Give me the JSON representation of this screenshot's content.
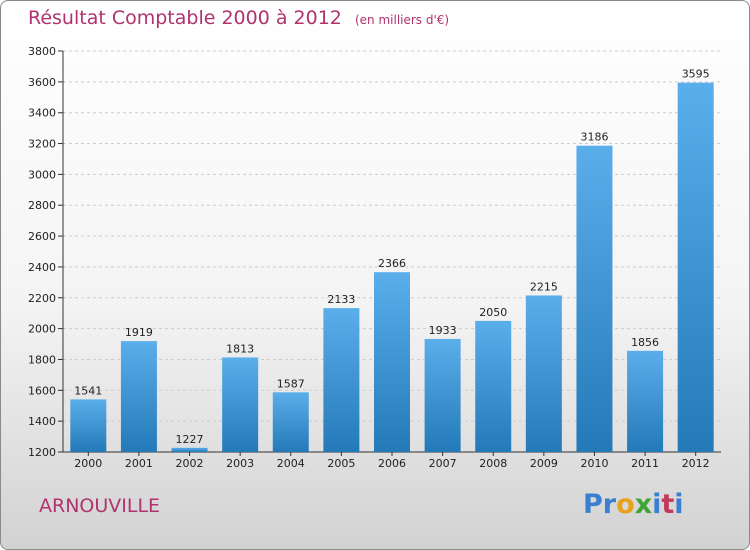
{
  "header": {
    "title": "Résultat Comptable 2000 à 2012",
    "subtitle": "(en milliers d'€)"
  },
  "footer": {
    "commune": "ARNOUVILLE",
    "logo_letters": [
      "P",
      "r",
      "o",
      "x",
      "i",
      "t",
      "i"
    ],
    "logo_colors": [
      "#3a7fd0",
      "#3a7fd0",
      "#e7a11a",
      "#3fa535",
      "#3a7fd0",
      "#c2395a",
      "#3a7fd0"
    ]
  },
  "chart_data": {
    "type": "bar",
    "categories": [
      "2000",
      "2001",
      "2002",
      "2003",
      "2004",
      "2005",
      "2006",
      "2007",
      "2008",
      "2009",
      "2010",
      "2011",
      "2012"
    ],
    "values": [
      1541,
      1919,
      1227,
      1813,
      1587,
      2133,
      2366,
      1933,
      2050,
      2215,
      3186,
      1856,
      3595
    ],
    "data_labels": [
      "1541",
      "1919",
      "1227",
      "1813",
      "1587",
      "2133",
      "2366",
      "1933",
      "2050",
      "2215",
      "3186",
      "1856",
      "3595"
    ],
    "ylim": [
      1200,
      3800
    ],
    "yticks": [
      1200,
      1400,
      1600,
      1800,
      2000,
      2200,
      2400,
      2600,
      2800,
      3000,
      3200,
      3400,
      3600,
      3800
    ],
    "grid": true,
    "colors": {
      "bar_top": "#5aaeea",
      "bar_bottom": "#2479b8",
      "grid": "#cccccc"
    }
  }
}
